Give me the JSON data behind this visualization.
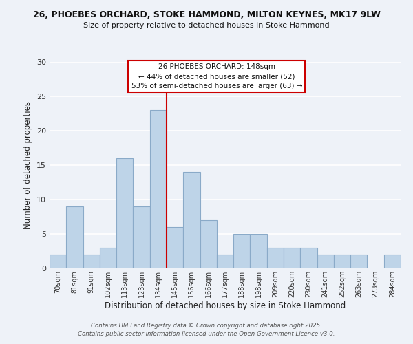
{
  "title_line1": "26, PHOEBES ORCHARD, STOKE HAMMOND, MILTON KEYNES, MK17 9LW",
  "title_line2": "Size of property relative to detached houses in Stoke Hammond",
  "xlabel": "Distribution of detached houses by size in Stoke Hammond",
  "ylabel": "Number of detached properties",
  "bar_labels": [
    "70sqm",
    "81sqm",
    "91sqm",
    "102sqm",
    "113sqm",
    "123sqm",
    "134sqm",
    "145sqm",
    "156sqm",
    "166sqm",
    "177sqm",
    "188sqm",
    "198sqm",
    "209sqm",
    "220sqm",
    "230sqm",
    "241sqm",
    "252sqm",
    "263sqm",
    "273sqm",
    "284sqm"
  ],
  "bar_values": [
    2,
    9,
    2,
    3,
    16,
    9,
    23,
    6,
    14,
    7,
    2,
    5,
    5,
    3,
    3,
    3,
    2,
    2,
    2,
    0,
    2
  ],
  "bar_color": "#bed4e8",
  "vline_index": 7,
  "vline_color": "#cc0000",
  "ylim": [
    0,
    30
  ],
  "yticks": [
    0,
    5,
    10,
    15,
    20,
    25,
    30
  ],
  "annotation_title": "26 PHOEBES ORCHARD: 148sqm",
  "annotation_line1": "← 44% of detached houses are smaller (52)",
  "annotation_line2": "53% of semi-detached houses are larger (63) →",
  "annotation_box_facecolor": "#ffffff",
  "annotation_box_edgecolor": "#cc0000",
  "background_color": "#eef2f8",
  "grid_color": "#ffffff",
  "footer_line1": "Contains HM Land Registry data © Crown copyright and database right 2025.",
  "footer_line2": "Contains public sector information licensed under the Open Government Licence v3.0."
}
